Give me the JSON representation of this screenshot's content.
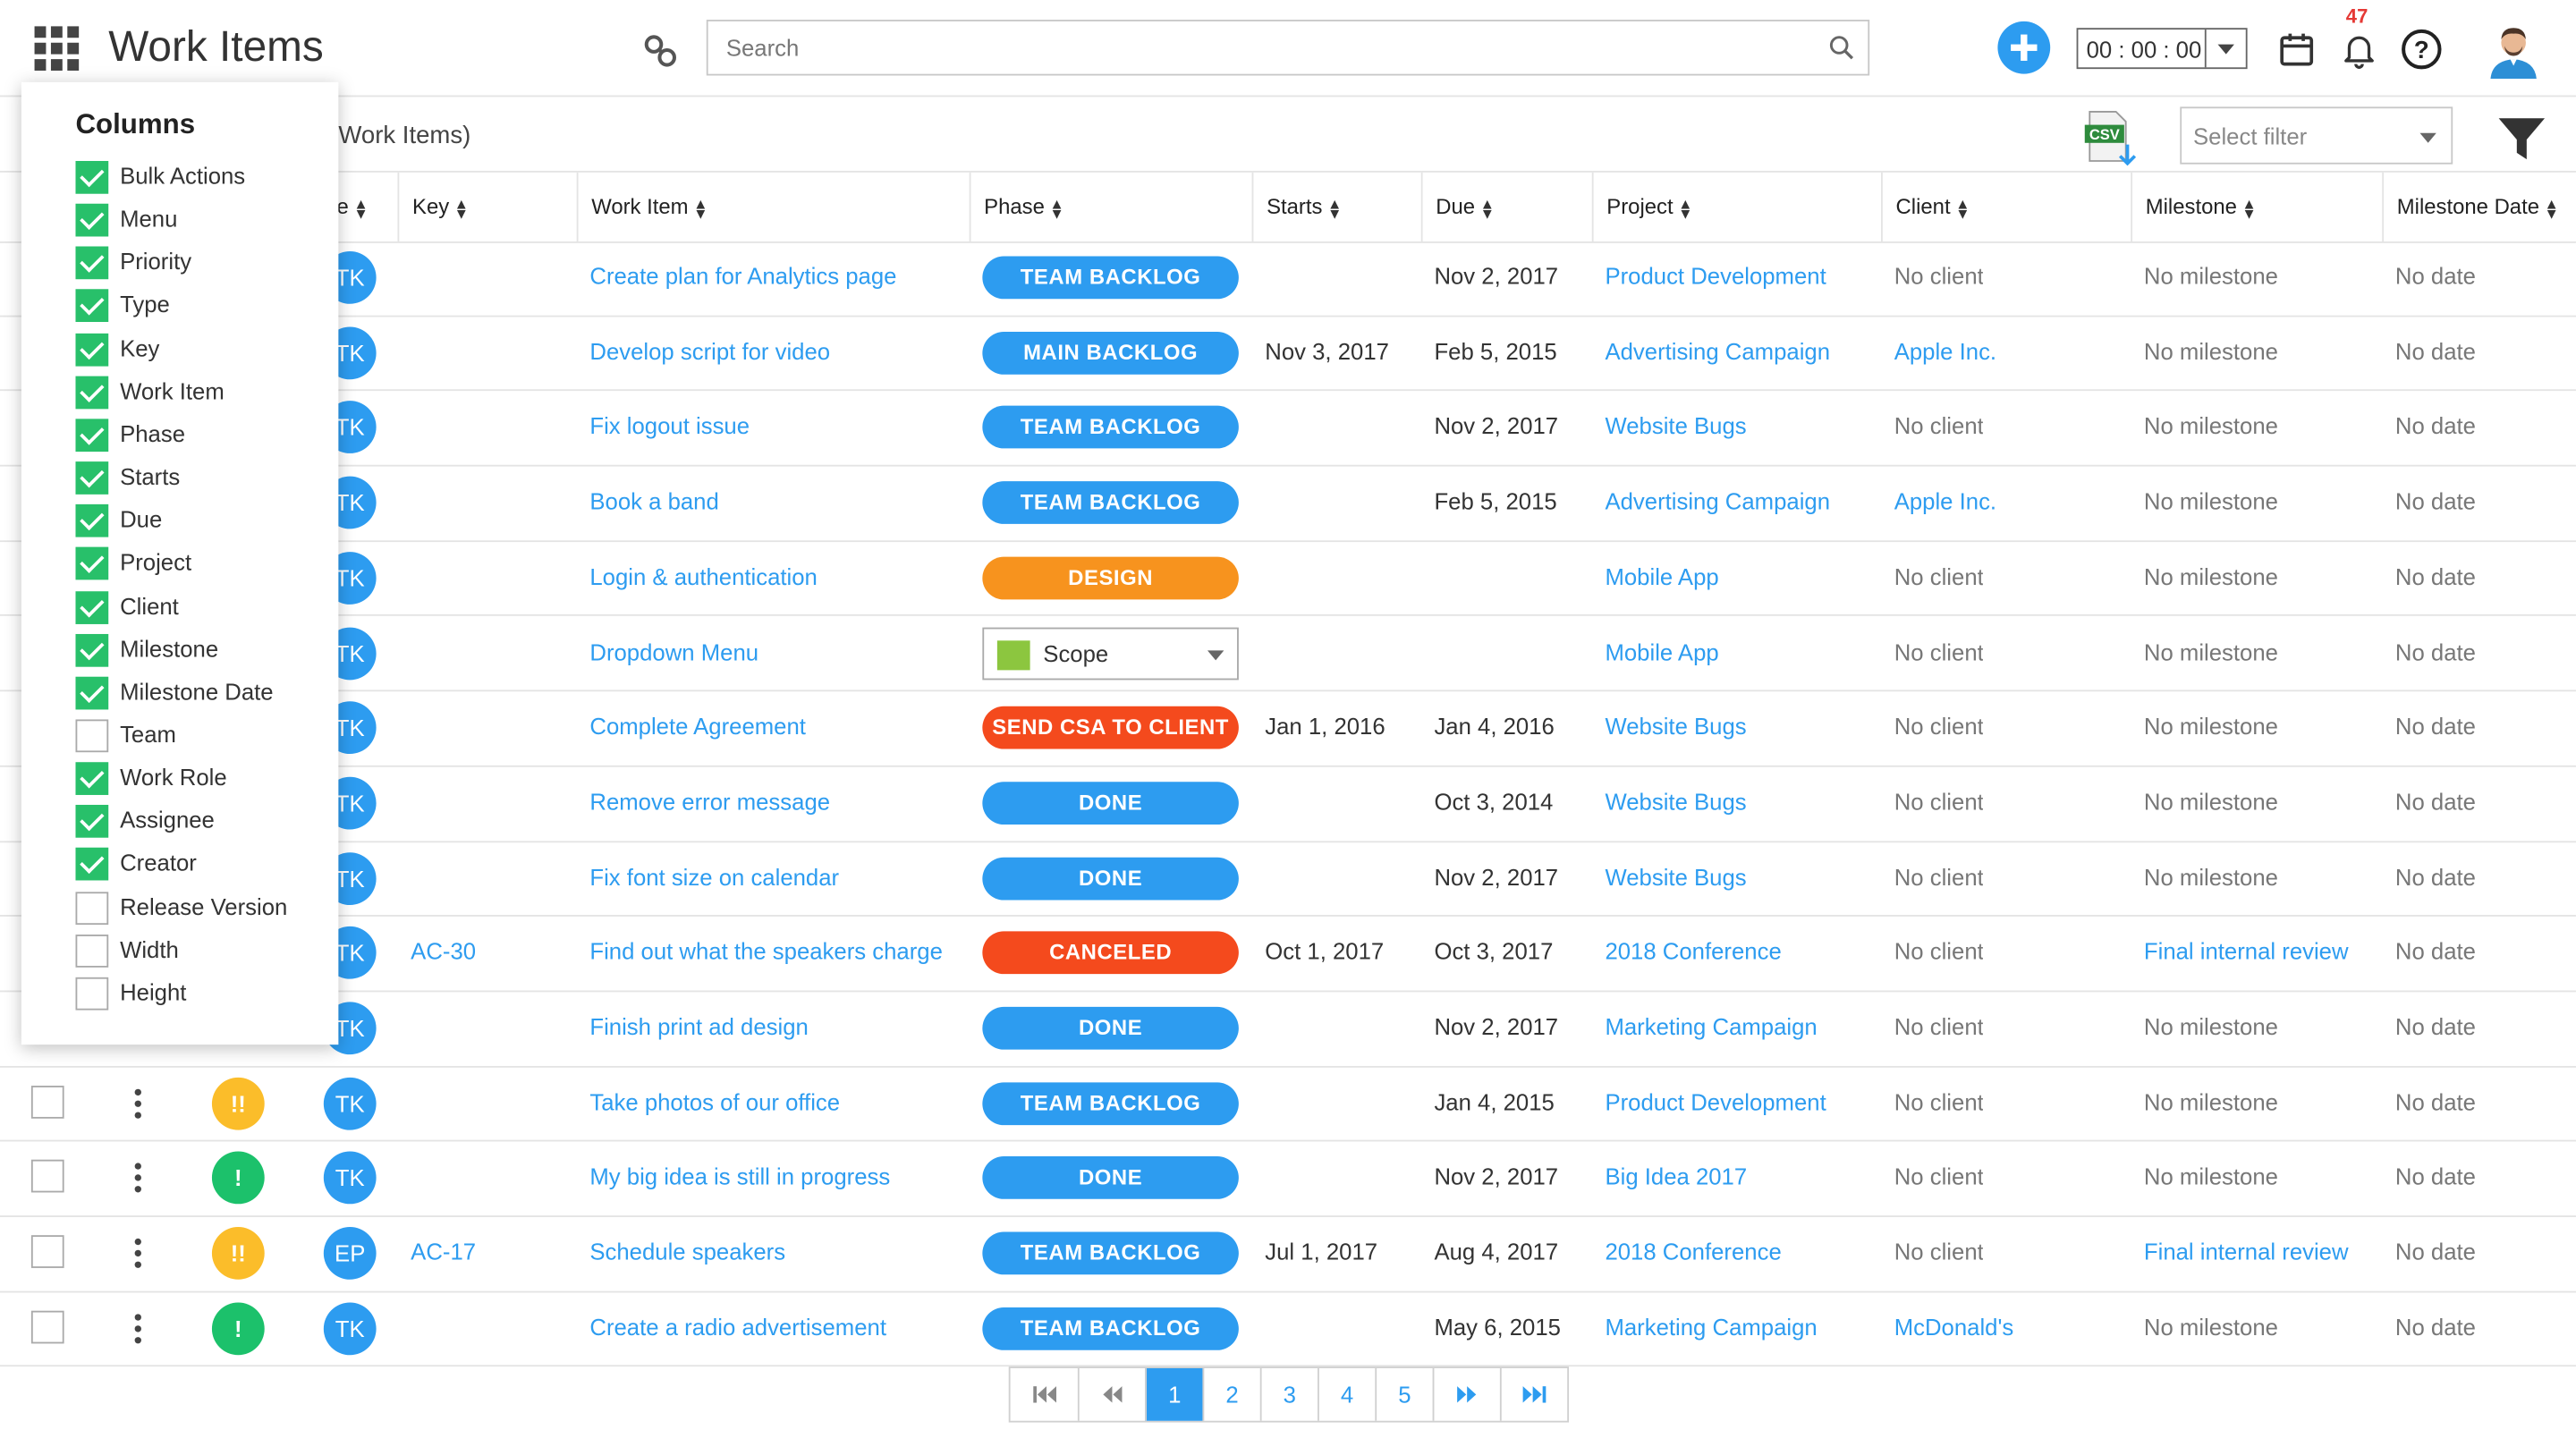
{
  "header": {
    "app_title": "Work Items",
    "search_placeholder": "Search",
    "timer_value": "00 : 00 : 00",
    "notification_count": "47"
  },
  "toolbar": {
    "breadcrumb_text": "Work Items)",
    "filter_placeholder": "Select filter",
    "csv_label": "CSV"
  },
  "columns_popup": {
    "title": "Columns",
    "options": [
      {
        "label": "Bulk Actions",
        "checked": true
      },
      {
        "label": "Menu",
        "checked": true
      },
      {
        "label": "Priority",
        "checked": true
      },
      {
        "label": "Type",
        "checked": true
      },
      {
        "label": "Key",
        "checked": true
      },
      {
        "label": "Work Item",
        "checked": true
      },
      {
        "label": "Phase",
        "checked": true
      },
      {
        "label": "Starts",
        "checked": true
      },
      {
        "label": "Due",
        "checked": true
      },
      {
        "label": "Project",
        "checked": true
      },
      {
        "label": "Client",
        "checked": true
      },
      {
        "label": "Milestone",
        "checked": true
      },
      {
        "label": "Milestone Date",
        "checked": true
      },
      {
        "label": "Team",
        "checked": false
      },
      {
        "label": "Work Role",
        "checked": true
      },
      {
        "label": "Assignee",
        "checked": true
      },
      {
        "label": "Creator",
        "checked": true
      },
      {
        "label": "Release Version",
        "checked": false
      },
      {
        "label": "Width",
        "checked": false
      },
      {
        "label": "Height",
        "checked": false
      }
    ]
  },
  "table": {
    "headers": [
      "e",
      "Key",
      "Work Item",
      "Phase",
      "Starts",
      "Due",
      "Project",
      "Client",
      "Milestone",
      "Milestone Date"
    ],
    "rows": [
      {
        "assignee": "TK",
        "key": "",
        "item": "Create plan for Analytics page",
        "phase": "TEAM BACKLOG",
        "phase_color": "#2d9cf0",
        "starts": "",
        "due": "Nov 2, 2017",
        "project": "Product Development",
        "client": "No client",
        "client_link": false,
        "milestone": "No milestone",
        "milestone_link": false,
        "mdate": "No date",
        "priority": ""
      },
      {
        "assignee": "TK",
        "key": "",
        "item": "Develop script for video",
        "phase": "MAIN BACKLOG",
        "phase_color": "#2d9cf0",
        "starts": "Nov 3, 2017",
        "due": "Feb 5, 2015",
        "project": "Advertising Campaign",
        "client": "Apple Inc.",
        "client_link": true,
        "milestone": "No milestone",
        "milestone_link": false,
        "mdate": "No date",
        "priority": ""
      },
      {
        "assignee": "TK",
        "key": "",
        "item": "Fix logout issue",
        "phase": "TEAM BACKLOG",
        "phase_color": "#2d9cf0",
        "starts": "",
        "due": "Nov 2, 2017",
        "project": "Website Bugs",
        "client": "No client",
        "client_link": false,
        "milestone": "No milestone",
        "milestone_link": false,
        "mdate": "No date",
        "priority": ""
      },
      {
        "assignee": "TK",
        "key": "",
        "item": "Book a band",
        "phase": "TEAM BACKLOG",
        "phase_color": "#2d9cf0",
        "starts": "",
        "due": "Feb 5, 2015",
        "project": "Advertising Campaign",
        "client": "Apple Inc.",
        "client_link": true,
        "milestone": "No milestone",
        "milestone_link": false,
        "mdate": "No date",
        "priority": ""
      },
      {
        "assignee": "TK",
        "key": "",
        "item": "Login & authentication",
        "phase": "DESIGN",
        "phase_color": "#f7931e",
        "starts": "",
        "due": "",
        "project": "Mobile App",
        "client": "No client",
        "client_link": false,
        "milestone": "No milestone",
        "milestone_link": false,
        "mdate": "No date",
        "priority": ""
      },
      {
        "assignee": "TK",
        "key": "",
        "item": "Dropdown Menu",
        "phase": "Scope",
        "phase_color": "select",
        "starts": "",
        "due": "",
        "project": "Mobile App",
        "client": "No client",
        "client_link": false,
        "milestone": "No milestone",
        "milestone_link": false,
        "mdate": "No date",
        "priority": ""
      },
      {
        "assignee": "TK",
        "key": "",
        "item": "Complete Agreement",
        "phase": "SEND CSA TO CLIENT",
        "phase_color": "#f44a1d",
        "starts": "Jan 1, 2016",
        "due": "Jan 4, 2016",
        "project": "Website Bugs",
        "client": "No client",
        "client_link": false,
        "milestone": "No milestone",
        "milestone_link": false,
        "mdate": "No date",
        "priority": ""
      },
      {
        "assignee": "TK",
        "key": "",
        "item": "Remove error message",
        "phase": "DONE",
        "phase_color": "#2d9cf0",
        "starts": "",
        "due": "Oct 3, 2014",
        "project": "Website Bugs",
        "client": "No client",
        "client_link": false,
        "milestone": "No milestone",
        "milestone_link": false,
        "mdate": "No date",
        "priority": ""
      },
      {
        "assignee": "TK",
        "key": "",
        "item": "Fix font size on calendar",
        "phase": "DONE",
        "phase_color": "#2d9cf0",
        "starts": "",
        "due": "Nov 2, 2017",
        "project": "Website Bugs",
        "client": "No client",
        "client_link": false,
        "milestone": "No milestone",
        "milestone_link": false,
        "mdate": "No date",
        "priority": ""
      },
      {
        "assignee": "TK",
        "key": "AC-30",
        "item": "Find out what the speakers charge",
        "phase": "CANCELED",
        "phase_color": "#f44a1d",
        "starts": "Oct 1, 2017",
        "due": "Oct 3, 2017",
        "project": "2018 Conference",
        "client": "No client",
        "client_link": false,
        "milestone": "Final internal review",
        "milestone_link": true,
        "mdate": "No date",
        "priority": ""
      },
      {
        "assignee": "TK",
        "key": "",
        "item": "Finish print ad design",
        "phase": "DONE",
        "phase_color": "#2d9cf0",
        "starts": "",
        "due": "Nov 2, 2017",
        "project": "Marketing Campaign",
        "client": "No client",
        "client_link": false,
        "milestone": "No milestone",
        "milestone_link": false,
        "mdate": "No date",
        "priority": ""
      },
      {
        "assignee": "TK",
        "key": "",
        "item": "Take photos of our office",
        "phase": "TEAM BACKLOG",
        "phase_color": "#2d9cf0",
        "starts": "",
        "due": "Jan 4, 2015",
        "project": "Product Development",
        "client": "No client",
        "client_link": false,
        "milestone": "No milestone",
        "milestone_link": false,
        "mdate": "No date",
        "priority": "!!",
        "priority_color": "#fbbd2a"
      },
      {
        "assignee": "TK",
        "key": "",
        "item": "My big idea is still in progress",
        "phase": "DONE",
        "phase_color": "#2d9cf0",
        "starts": "",
        "due": "Nov 2, 2017",
        "project": "Big Idea 2017",
        "client": "No client",
        "client_link": false,
        "milestone": "No milestone",
        "milestone_link": false,
        "mdate": "No date",
        "priority": "!",
        "priority_color": "#1cc16b"
      },
      {
        "assignee": "EP",
        "key": "AC-17",
        "item": "Schedule speakers",
        "phase": "TEAM BACKLOG",
        "phase_color": "#2d9cf0",
        "starts": "Jul 1, 2017",
        "due": "Aug 4, 2017",
        "project": "2018 Conference",
        "client": "No client",
        "client_link": false,
        "milestone": "Final internal review",
        "milestone_link": true,
        "mdate": "No date",
        "priority": "!!",
        "priority_color": "#fbbd2a"
      },
      {
        "assignee": "TK",
        "key": "",
        "item": "Create a radio advertisement",
        "phase": "TEAM BACKLOG",
        "phase_color": "#2d9cf0",
        "starts": "",
        "due": "May 6, 2015",
        "project": "Marketing Campaign",
        "client": "McDonald's",
        "client_link": true,
        "milestone": "No milestone",
        "milestone_link": false,
        "mdate": "No date",
        "priority": "!",
        "priority_color": "#1cc16b"
      }
    ]
  },
  "pagination": {
    "pages": [
      "1",
      "2",
      "3",
      "4",
      "5"
    ],
    "current": "1"
  },
  "colors": {
    "accent": "#2d9cf0",
    "check_green": "#28c06a",
    "orange": "#f7931e",
    "red": "#f44a1d"
  }
}
